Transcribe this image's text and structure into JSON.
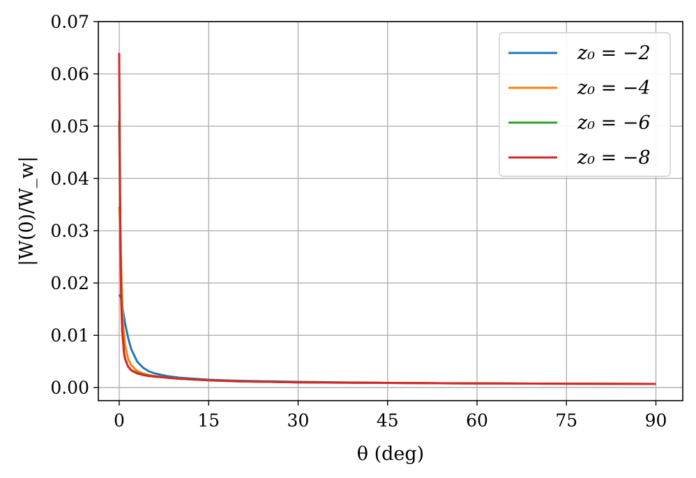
{
  "chart_data": {
    "type": "line",
    "xlabel": "θ (deg)",
    "ylabel": "|W(0)/W_w|",
    "xlim": [
      -3.5,
      94.5
    ],
    "ylim": [
      -0.0025,
      0.07
    ],
    "xticks": [
      0,
      15,
      30,
      45,
      60,
      75,
      90
    ],
    "yticks": [
      0.0,
      0.01,
      0.02,
      0.03,
      0.04,
      0.05,
      0.06,
      0.07
    ],
    "xtick_labels": [
      "0",
      "15",
      "30",
      "45",
      "60",
      "75",
      "90"
    ],
    "ytick_labels": [
      "0.00",
      "0.01",
      "0.02",
      "0.03",
      "0.04",
      "0.05",
      "0.06",
      "0.07"
    ],
    "grid": true,
    "legend_position": "top-right",
    "series": [
      {
        "name": "z₀ = −2",
        "color": "#1f77b4",
        "x": [
          0,
          0.3,
          0.6,
          1,
          1.5,
          2,
          3,
          4,
          5,
          6,
          8,
          10,
          15,
          20,
          30,
          45,
          60,
          75,
          90
        ],
        "y": [
          0.0178,
          0.0172,
          0.015,
          0.0122,
          0.0095,
          0.0074,
          0.005,
          0.0038,
          0.0031,
          0.0027,
          0.0022,
          0.0019,
          0.0015,
          0.0013,
          0.0011,
          0.0009,
          0.0008,
          0.00075,
          0.0007
        ]
      },
      {
        "name": "z₀ = −4",
        "color": "#ff7f0e",
        "x": [
          0,
          0.2,
          0.4,
          0.7,
          1,
          1.5,
          2,
          3,
          4,
          5,
          6,
          8,
          10,
          15,
          20,
          30,
          45,
          60,
          75,
          90
        ],
        "y": [
          0.0346,
          0.03,
          0.02,
          0.0115,
          0.008,
          0.0055,
          0.0043,
          0.0032,
          0.0027,
          0.0024,
          0.0022,
          0.0019,
          0.0017,
          0.0014,
          0.0012,
          0.001,
          0.0009,
          0.0008,
          0.00075,
          0.0007
        ]
      },
      {
        "name": "z₀ = −6",
        "color": "#2ca02c",
        "x": [
          0,
          0.15,
          0.3,
          0.5,
          0.8,
          1,
          1.5,
          2,
          3,
          4,
          5,
          6,
          8,
          10,
          15,
          20,
          30,
          45,
          60,
          75,
          90
        ],
        "y": [
          0.051,
          0.035,
          0.02,
          0.011,
          0.0066,
          0.0054,
          0.004,
          0.0034,
          0.0028,
          0.0025,
          0.0023,
          0.0021,
          0.0019,
          0.0017,
          0.0014,
          0.0012,
          0.001,
          0.0009,
          0.0008,
          0.00075,
          0.0007
        ]
      },
      {
        "name": "z₀ = −8",
        "color": "#d62728",
        "x": [
          0,
          0.1,
          0.2,
          0.35,
          0.5,
          0.8,
          1,
          1.5,
          2,
          3,
          4,
          5,
          6,
          8,
          10,
          15,
          20,
          30,
          45,
          60,
          75,
          90
        ],
        "y": [
          0.064,
          0.045,
          0.028,
          0.016,
          0.011,
          0.0068,
          0.0055,
          0.004,
          0.0033,
          0.0027,
          0.0024,
          0.0022,
          0.0021,
          0.0019,
          0.0017,
          0.0014,
          0.0012,
          0.001,
          0.0009,
          0.0008,
          0.00075,
          0.0007
        ]
      }
    ]
  }
}
